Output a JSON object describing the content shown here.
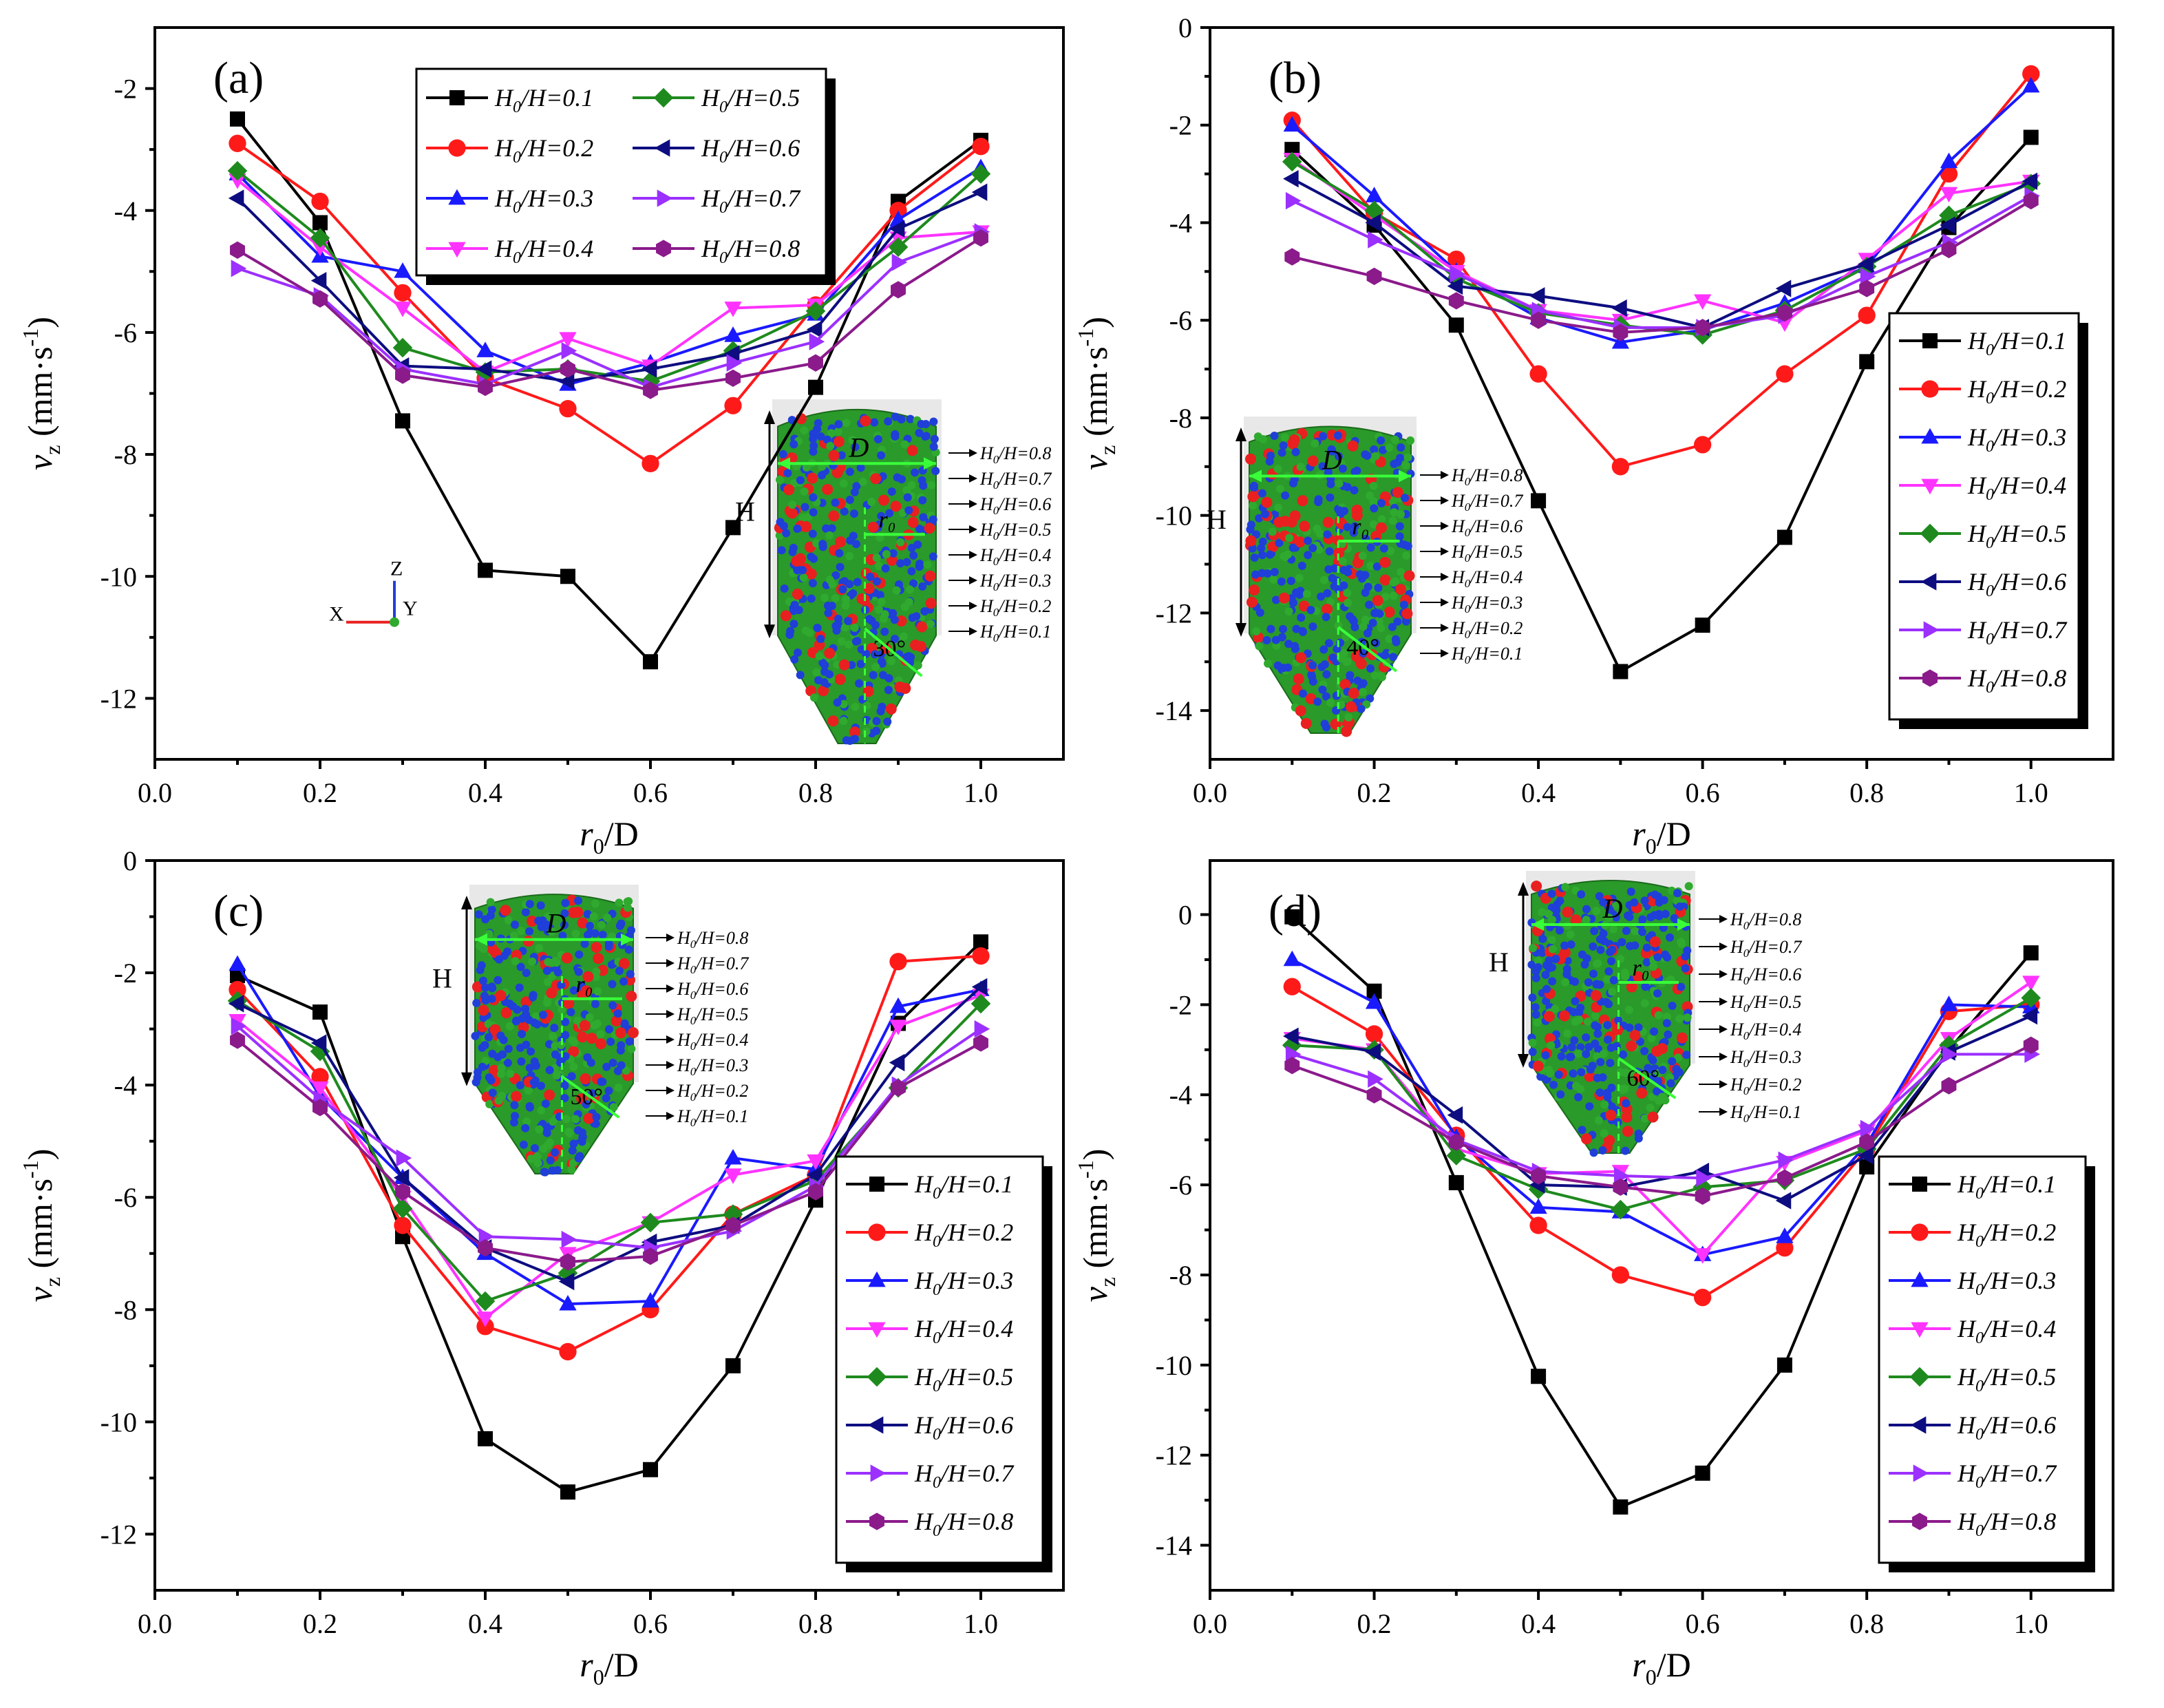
{
  "figure": {
    "ylabel": "v_z (mm·s⁻¹)",
    "xlabel": "r₀/D",
    "legend_prefix": "H₀/H=",
    "inset_letters": {
      "height": "H",
      "diameter": "D",
      "radius": "r₀"
    }
  },
  "chart_data": [
    {
      "type": "line",
      "panel": "(a)",
      "title": "",
      "xlabel": "r₀/D",
      "ylabel": "v_z (mm·s⁻¹)",
      "xlim": [
        0.0,
        1.1
      ],
      "ylim": [
        -13,
        -1
      ],
      "xticks": [
        "0.0",
        "0.2",
        "0.4",
        "0.6",
        "0.8",
        "1.0"
      ],
      "yticks": [
        "-2",
        "-4",
        "-6",
        "-8",
        "-10",
        "-12"
      ],
      "legend": "top-center (2 columns)",
      "inset_angle": "30°",
      "axis_triad": [
        "X",
        "Y",
        "Z"
      ],
      "x": [
        0.1,
        0.2,
        0.3,
        0.4,
        0.5,
        0.6,
        0.7,
        0.8,
        0.9,
        1.0
      ],
      "series": [
        {
          "name": "0.1",
          "values": [
            -2.5,
            -4.2,
            -7.45,
            -9.9,
            -10.0,
            -11.4,
            -9.2,
            -6.9,
            -3.85,
            -2.85
          ]
        },
        {
          "name": "0.2",
          "values": [
            -2.9,
            -3.85,
            -5.35,
            -6.75,
            -7.25,
            -8.15,
            -7.2,
            -5.55,
            -4.0,
            -2.95
          ]
        },
        {
          "name": "0.3",
          "values": [
            -3.4,
            -4.75,
            -5.0,
            -6.3,
            -6.85,
            -6.5,
            -6.05,
            -5.7,
            -4.15,
            -3.3
          ]
        },
        {
          "name": "0.4",
          "values": [
            -3.5,
            -4.6,
            -5.6,
            -6.65,
            -6.1,
            -6.55,
            -5.6,
            -5.55,
            -4.45,
            -4.35
          ]
        },
        {
          "name": "0.5",
          "values": [
            -3.35,
            -4.45,
            -6.25,
            -6.65,
            -6.6,
            -6.8,
            -6.3,
            -5.65,
            -4.6,
            -3.4
          ]
        },
        {
          "name": "0.6",
          "values": [
            -3.8,
            -5.15,
            -6.55,
            -6.6,
            -6.8,
            -6.6,
            -6.35,
            -5.95,
            -4.3,
            -3.7
          ]
        },
        {
          "name": "0.7",
          "values": [
            -4.95,
            -5.4,
            -6.6,
            -6.85,
            -6.3,
            -6.9,
            -6.5,
            -6.15,
            -4.85,
            -4.35
          ]
        },
        {
          "name": "0.8",
          "values": [
            -4.65,
            -5.45,
            -6.7,
            -6.9,
            -6.6,
            -6.95,
            -6.75,
            -6.5,
            -5.3,
            -4.45
          ]
        }
      ]
    },
    {
      "type": "line",
      "panel": "(b)",
      "title": "",
      "xlabel": "r₀/D",
      "ylabel": "v_z (mm·s⁻¹)",
      "xlim": [
        0.0,
        1.1
      ],
      "ylim": [
        -15,
        0
      ],
      "xticks": [
        "0.0",
        "0.2",
        "0.4",
        "0.6",
        "0.8",
        "1.0"
      ],
      "yticks": [
        "0",
        "-2",
        "-4",
        "-6",
        "-8",
        "-10",
        "-12",
        "-14"
      ],
      "legend": "right",
      "inset_angle": "40°",
      "x": [
        0.1,
        0.2,
        0.3,
        0.4,
        0.5,
        0.6,
        0.7,
        0.8,
        0.9,
        1.0
      ],
      "series": [
        {
          "name": "0.1",
          "values": [
            -2.5,
            -4.05,
            -6.1,
            -9.7,
            -13.2,
            -12.25,
            -10.45,
            -6.85,
            -4.1,
            -2.25
          ]
        },
        {
          "name": "0.2",
          "values": [
            -1.9,
            -3.8,
            -4.75,
            -7.1,
            -9.0,
            -8.55,
            -7.1,
            -5.9,
            -3.0,
            -0.95
          ]
        },
        {
          "name": "0.3",
          "values": [
            -2.0,
            -3.45,
            -5.0,
            -5.95,
            -6.45,
            -6.2,
            -5.65,
            -4.9,
            -2.75,
            -1.2
          ]
        },
        {
          "name": "0.4",
          "values": [
            -2.7,
            -3.85,
            -5.0,
            -5.8,
            -6.0,
            -5.6,
            -6.05,
            -4.75,
            -3.4,
            -3.15
          ]
        },
        {
          "name": "0.5",
          "values": [
            -2.75,
            -3.75,
            -5.15,
            -5.85,
            -6.1,
            -6.3,
            -5.8,
            -4.9,
            -3.85,
            -3.2
          ]
        },
        {
          "name": "0.6",
          "values": [
            -3.1,
            -4.0,
            -5.3,
            -5.5,
            -5.75,
            -6.15,
            -5.35,
            -4.85,
            -4.05,
            -3.15
          ]
        },
        {
          "name": "0.7",
          "values": [
            -3.55,
            -4.35,
            -5.05,
            -5.8,
            -6.15,
            -6.15,
            -5.9,
            -5.1,
            -4.4,
            -3.45
          ]
        },
        {
          "name": "0.8",
          "values": [
            -4.7,
            -5.1,
            -5.6,
            -6.0,
            -6.25,
            -6.15,
            -5.85,
            -5.35,
            -4.55,
            -3.55
          ]
        }
      ]
    },
    {
      "type": "line",
      "panel": "(c)",
      "title": "",
      "xlabel": "r₀/D",
      "ylabel": "v_z (mm·s⁻¹)",
      "xlim": [
        0.0,
        1.1
      ],
      "ylim": [
        -13,
        0
      ],
      "xticks": [
        "0.0",
        "0.2",
        "0.4",
        "0.6",
        "0.8",
        "1.0"
      ],
      "yticks": [
        "0",
        "-2",
        "-4",
        "-6",
        "-8",
        "-10",
        "-12"
      ],
      "legend": "bottom-right",
      "inset_angle": "50°",
      "x": [
        0.1,
        0.2,
        0.3,
        0.4,
        0.5,
        0.6,
        0.7,
        0.8,
        0.9,
        1.0
      ],
      "series": [
        {
          "name": "0.1",
          "values": [
            -2.05,
            -2.7,
            -6.7,
            -10.3,
            -11.25,
            -10.85,
            -9.0,
            -6.05,
            -2.9,
            -1.45
          ]
        },
        {
          "name": "0.2",
          "values": [
            -2.3,
            -3.85,
            -6.5,
            -8.3,
            -8.75,
            -8.0,
            -6.3,
            -5.6,
            -1.8,
            -1.7
          ]
        },
        {
          "name": "0.3",
          "values": [
            -1.85,
            -4.2,
            -5.65,
            -7.0,
            -7.9,
            -7.85,
            -5.3,
            -5.5,
            -2.6,
            -2.3
          ]
        },
        {
          "name": "0.4",
          "values": [
            -2.85,
            -4.05,
            -6.0,
            -8.15,
            -7.0,
            -6.45,
            -5.6,
            -5.35,
            -2.95,
            -2.4
          ]
        },
        {
          "name": "0.5",
          "values": [
            -2.5,
            -3.4,
            -6.2,
            -7.85,
            -7.35,
            -6.45,
            -6.3,
            -5.7,
            -4.05,
            -2.55
          ]
        },
        {
          "name": "0.6",
          "values": [
            -2.55,
            -3.25,
            -5.65,
            -6.9,
            -7.5,
            -6.8,
            -6.5,
            -5.6,
            -3.6,
            -2.25
          ]
        },
        {
          "name": "0.7",
          "values": [
            -2.95,
            -4.25,
            -5.3,
            -6.7,
            -6.75,
            -6.9,
            -6.6,
            -5.8,
            -4.0,
            -3.0
          ]
        },
        {
          "name": "0.8",
          "values": [
            -3.2,
            -4.4,
            -5.9,
            -6.9,
            -7.15,
            -7.05,
            -6.5,
            -5.9,
            -4.05,
            -3.25
          ]
        }
      ]
    },
    {
      "type": "line",
      "panel": "(d)",
      "title": "",
      "xlabel": "r₀/D",
      "ylabel": "v_z (mm·s⁻¹)",
      "xlim": [
        0.0,
        1.1
      ],
      "ylim": [
        -15,
        1.2
      ],
      "xticks": [
        "0.0",
        "0.2",
        "0.4",
        "0.6",
        "0.8",
        "1.0"
      ],
      "yticks": [
        "0",
        "-2",
        "-4",
        "-6",
        "-8",
        "-10",
        "-12",
        "-14"
      ],
      "legend": "bottom-right",
      "inset_angle": "60°",
      "x": [
        0.1,
        0.2,
        0.3,
        0.4,
        0.5,
        0.6,
        0.7,
        0.8,
        0.9,
        1.0
      ],
      "series": [
        {
          "name": "0.1",
          "values": [
            -0.05,
            -1.7,
            -5.95,
            -10.25,
            -13.15,
            -12.4,
            -10.0,
            -5.6,
            -3.0,
            -0.85
          ]
        },
        {
          "name": "0.2",
          "values": [
            -1.6,
            -2.65,
            -4.9,
            -6.9,
            -8.0,
            -8.5,
            -7.4,
            -5.2,
            -2.15,
            -2.0
          ]
        },
        {
          "name": "0.3",
          "values": [
            -1.0,
            -1.95,
            -4.95,
            -6.5,
            -6.6,
            -7.55,
            -7.15,
            -5.1,
            -2.0,
            -2.05
          ]
        },
        {
          "name": "0.4",
          "values": [
            -2.75,
            -3.0,
            -5.2,
            -5.75,
            -5.7,
            -7.55,
            -5.5,
            -4.8,
            -2.75,
            -1.5
          ]
        },
        {
          "name": "0.5",
          "values": [
            -2.9,
            -3.0,
            -5.35,
            -6.1,
            -6.55,
            -6.05,
            -5.9,
            -5.2,
            -2.9,
            -1.85
          ]
        },
        {
          "name": "0.6",
          "values": [
            -2.7,
            -3.05,
            -4.45,
            -6.0,
            -6.05,
            -5.7,
            -6.35,
            -5.35,
            -3.05,
            -2.25
          ]
        },
        {
          "name": "0.7",
          "values": [
            -3.1,
            -3.65,
            -5.0,
            -5.7,
            -5.8,
            -5.85,
            -5.45,
            -4.75,
            -3.1,
            -3.1
          ]
        },
        {
          "name": "0.8",
          "values": [
            -3.35,
            -4.0,
            -5.05,
            -5.8,
            -6.05,
            -6.25,
            -5.85,
            -5.05,
            -3.8,
            -2.9
          ]
        }
      ]
    }
  ],
  "series_style": [
    {
      "color": "#000000",
      "marker": "square"
    },
    {
      "color": "#ff1a1a",
      "marker": "circle"
    },
    {
      "color": "#1a1aff",
      "marker": "triangle-up"
    },
    {
      "color": "#ff33ff",
      "marker": "triangle-down"
    },
    {
      "color": "#1e8a1e",
      "marker": "diamond"
    },
    {
      "color": "#0d0d80",
      "marker": "triangle-left"
    },
    {
      "color": "#9b30ff",
      "marker": "triangle-right"
    },
    {
      "color": "#8b1a8b",
      "marker": "hexagon"
    }
  ],
  "inset_tags": [
    "0.8",
    "0.7",
    "0.6",
    "0.5",
    "0.4",
    "0.3",
    "0.2",
    "0.1"
  ]
}
